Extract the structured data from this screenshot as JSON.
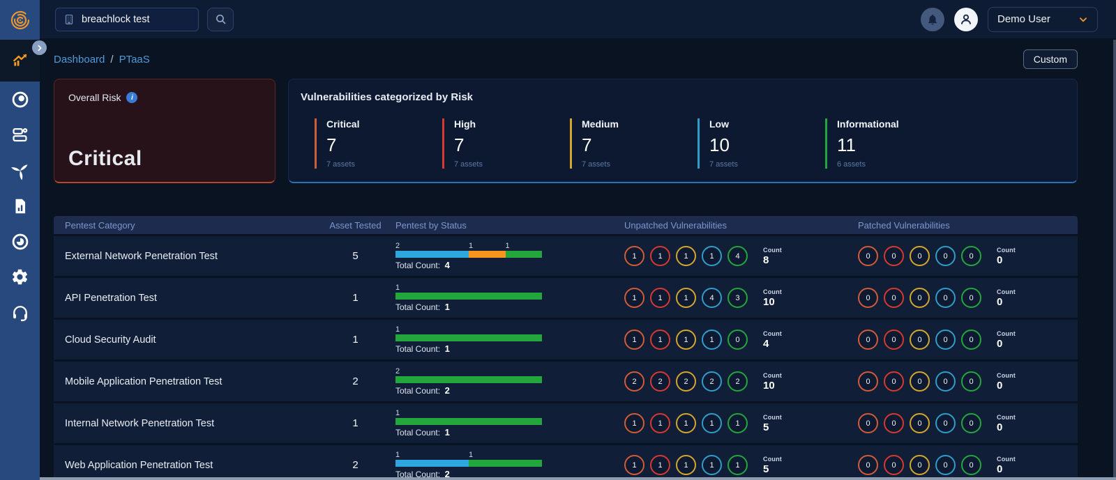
{
  "topbar": {
    "search_value": "breachlock test",
    "user_name": "Demo User"
  },
  "sidebar": {
    "logo_icon": "fingerprint-icon",
    "items": [
      {
        "icon": "trending-chart-icon",
        "active": true
      },
      {
        "icon": "target-icon",
        "active": false
      },
      {
        "icon": "assets-icon",
        "active": false
      },
      {
        "icon": "pinwheel-icon",
        "active": false
      },
      {
        "icon": "report-icon",
        "active": false
      },
      {
        "icon": "disc-icon",
        "active": false
      },
      {
        "icon": "gear-icon",
        "active": false
      },
      {
        "icon": "headset-icon",
        "active": false
      }
    ]
  },
  "breadcrumb": {
    "item1": "Dashboard",
    "separator": "/",
    "item2": "PTaaS"
  },
  "custom_button_label": "Custom",
  "overall_risk": {
    "label": "Overall Risk",
    "value": "Critical",
    "accent": "#b84531"
  },
  "risk_summary": {
    "title": "Vulnerabilities categorized by Risk",
    "items": [
      {
        "label": "Critical",
        "count": "7",
        "assets": "7 assets",
        "color": "#d05c38"
      },
      {
        "label": "High",
        "count": "7",
        "assets": "7 assets",
        "color": "#d63a2f"
      },
      {
        "label": "Medium",
        "count": "7",
        "assets": "7 assets",
        "color": "#d4a72c"
      },
      {
        "label": "Low",
        "count": "10",
        "assets": "7 assets",
        "color": "#2f9dc9"
      },
      {
        "label": "Informational",
        "count": "11",
        "assets": "6 assets",
        "color": "#23a63b"
      }
    ]
  },
  "table": {
    "headers": {
      "category": "Pentest Category",
      "assets": "Asset Tested",
      "status": "Pentest by Status",
      "unpatched": "Unpatched Vulnerabilities",
      "patched": "Patched Vulnerabilities"
    },
    "total_count_label": "Total Count:",
    "count_label": "Count",
    "risk_colors": [
      "#d05c38",
      "#d63a2f",
      "#d4a72c",
      "#2f9dc9",
      "#23a63b"
    ],
    "rows": [
      {
        "category": "External Network Penetration Test",
        "assets": "5",
        "segments": [
          {
            "label": "2",
            "pct": 50,
            "color": "#2da7dd"
          },
          {
            "label": "1",
            "pct": 25,
            "color": "#f7941e"
          },
          {
            "label": "1",
            "pct": 25,
            "color": "#23a63b"
          }
        ],
        "total": "4",
        "unpatched": [
          "1",
          "1",
          "1",
          "1",
          "4"
        ],
        "unpatched_count": "8",
        "patched": [
          "0",
          "0",
          "0",
          "0",
          "0"
        ],
        "patched_count": "0"
      },
      {
        "category": "API Penetration Test",
        "assets": "1",
        "segments": [
          {
            "label": "1",
            "pct": 100,
            "color": "#23a63b"
          }
        ],
        "total": "1",
        "unpatched": [
          "1",
          "1",
          "1",
          "4",
          "3"
        ],
        "unpatched_count": "10",
        "patched": [
          "0",
          "0",
          "0",
          "0",
          "0"
        ],
        "patched_count": "0"
      },
      {
        "category": "Cloud Security Audit",
        "assets": "1",
        "segments": [
          {
            "label": "1",
            "pct": 100,
            "color": "#23a63b"
          }
        ],
        "total": "1",
        "unpatched": [
          "1",
          "1",
          "1",
          "1",
          "0"
        ],
        "unpatched_count": "4",
        "patched": [
          "0",
          "0",
          "0",
          "0",
          "0"
        ],
        "patched_count": "0"
      },
      {
        "category": "Mobile Application Penetration Test",
        "assets": "2",
        "segments": [
          {
            "label": "2",
            "pct": 100,
            "color": "#23a63b"
          }
        ],
        "total": "2",
        "unpatched": [
          "2",
          "2",
          "2",
          "2",
          "2"
        ],
        "unpatched_count": "10",
        "patched": [
          "0",
          "0",
          "0",
          "0",
          "0"
        ],
        "patched_count": "0"
      },
      {
        "category": "Internal Network Penetration Test",
        "assets": "1",
        "segments": [
          {
            "label": "1",
            "pct": 100,
            "color": "#23a63b"
          }
        ],
        "total": "1",
        "unpatched": [
          "1",
          "1",
          "1",
          "1",
          "1"
        ],
        "unpatched_count": "5",
        "patched": [
          "0",
          "0",
          "0",
          "0",
          "0"
        ],
        "patched_count": "0"
      },
      {
        "category": "Web Application Penetration Test",
        "assets": "2",
        "segments": [
          {
            "label": "1",
            "pct": 50,
            "color": "#2da7dd"
          },
          {
            "label": "1",
            "pct": 50,
            "color": "#23a63b"
          }
        ],
        "total": "2",
        "unpatched": [
          "1",
          "1",
          "1",
          "1",
          "1"
        ],
        "unpatched_count": "5",
        "patched": [
          "0",
          "0",
          "0",
          "0",
          "0"
        ],
        "patched_count": "0"
      }
    ]
  }
}
